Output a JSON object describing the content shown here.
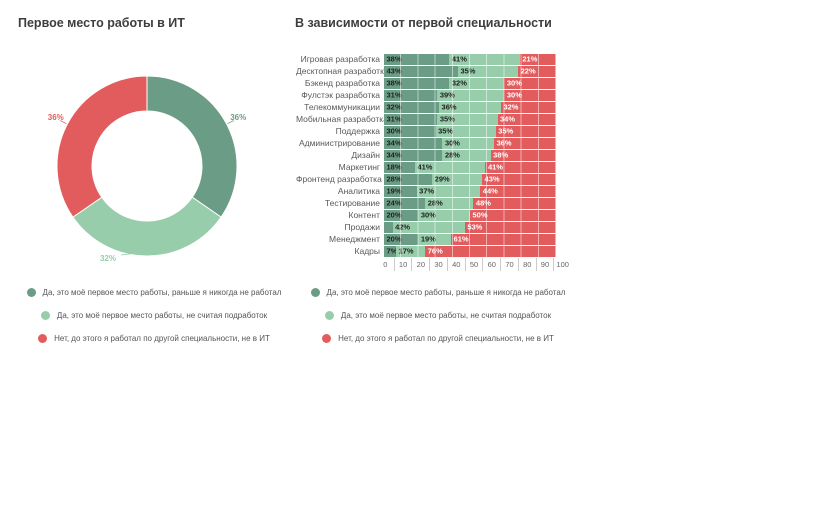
{
  "palette": {
    "first_job_never_worked": "#6B9C85",
    "first_job_no_side_jobs": "#97CDAB",
    "other_specialty_not_it": "#E25C5E",
    "title_color": "#3d3d3d",
    "bar_label_dark": "#1f1f1f",
    "bar_label_light": "#ffffff"
  },
  "legend": {
    "items": [
      {
        "label": "Да, это моё первое место работы, раньше я никогда не работал",
        "color": "#6B9C85"
      },
      {
        "label": "Да, это моё первое место работы, не считая подработок",
        "color": "#97CDAB"
      },
      {
        "label": "Нет, до этого я работал по другой специальности, не в ИТ",
        "color": "#E25C5E"
      }
    ]
  },
  "chart_data": [
    {
      "type": "pie",
      "subtype": "donut",
      "title": "Первое место работы в ИТ",
      "labels": [
        "Да, это моё первое место работы, раньше я никогда не работал",
        "Да, это моё первое место работы, не считая подработок",
        "Нет, до этого я работал по другой специальности, не в ИТ"
      ],
      "values": [
        36,
        32,
        36
      ],
      "value_labels": [
        "36%",
        "32%",
        "36%"
      ],
      "colors": [
        "#6B9C85",
        "#97CDAB",
        "#E25C5E"
      ],
      "legend_position": "bottom",
      "start_angle_deg": 0,
      "direction": "clockwise"
    },
    {
      "type": "bar",
      "subtype": "stacked-horizontal",
      "title": "В зависимости от первой специальности",
      "categories": [
        "Игровая разработка",
        "Десктопная разработка",
        "Бэкенд разработка",
        "Фулстэк разработка",
        "Телекоммуникации",
        "Мобильная разработка",
        "Поддержка",
        "Администрирование",
        "Дизайн",
        "Маркетинг",
        "Фронтенд разработка",
        "Аналитика",
        "Тестирование",
        "Контент",
        "Продажи",
        "Менеджмент",
        "Кадры"
      ],
      "series": [
        {
          "name": "Да, это моё первое место работы, раньше я никогда не работал",
          "color": "#6B9C85",
          "values": [
            38,
            43,
            38,
            31,
            32,
            31,
            30,
            34,
            34,
            18,
            28,
            19,
            24,
            20,
            5,
            20,
            7
          ]
        },
        {
          "name": "Да, это моё первое место работы, не считая подработок",
          "color": "#97CDAB",
          "values": [
            41,
            35,
            32,
            39,
            36,
            35,
            35,
            30,
            28,
            41,
            29,
            37,
            28,
            30,
            42,
            19,
            17
          ]
        },
        {
          "name": "Нет, до этого я работал по другой специальности, не в ИТ",
          "color": "#E25C5E",
          "values": [
            21,
            22,
            30,
            30,
            32,
            34,
            35,
            36,
            38,
            41,
            43,
            44,
            48,
            50,
            53,
            61,
            76
          ]
        }
      ],
      "value_suffix": "%",
      "label_threshold": 6,
      "xlabel": "",
      "ylabel": "",
      "xlim": [
        0,
        100
      ],
      "x_ticks": [
        "0",
        "10",
        "20",
        "30",
        "40",
        "50",
        "60",
        "70",
        "80",
        "90",
        "100"
      ],
      "grid": true,
      "legend_position": "bottom"
    }
  ]
}
